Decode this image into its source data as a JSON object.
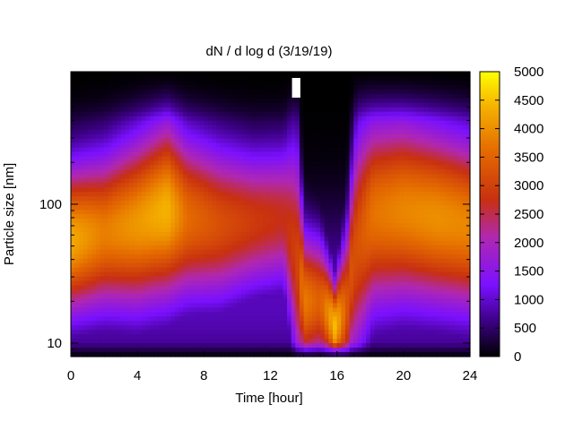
{
  "chart_data": {
    "type": "heatmap",
    "title": "dN / d log d (3/19/19)",
    "xlabel": "Time [hour]",
    "ylabel": "Particle size [nm]",
    "xlim": [
      0,
      24
    ],
    "ylim": [
      8,
      900
    ],
    "y_scale": "log",
    "x_ticks": [
      0,
      4,
      8,
      12,
      16,
      20,
      24
    ],
    "y_ticks": [
      10,
      100
    ],
    "colorbar": {
      "min": 0,
      "max": 5000,
      "ticks": [
        0,
        500,
        1000,
        1500,
        2000,
        2500,
        3000,
        3500,
        4000,
        4500,
        5000
      ],
      "palette": "black-purple-red-orange-yellow"
    },
    "grid": false,
    "missing_data_spans": [
      [
        13.3,
        13.8
      ]
    ],
    "structure": {
      "times": [
        0,
        2,
        4,
        5.8,
        7,
        9,
        11,
        12.8,
        13.6,
        14,
        15,
        15.9,
        16.6,
        17.2,
        18.2,
        20,
        22,
        24
      ],
      "mode_diameter_nm": [
        55,
        62,
        72,
        90,
        80,
        72,
        75,
        80,
        40,
        20,
        20,
        13,
        18,
        50,
        85,
        90,
        80,
        70
      ],
      "peak_concentration": [
        4300,
        3800,
        4100,
        4400,
        3600,
        3200,
        2900,
        2700,
        3000,
        3800,
        3400,
        4500,
        3300,
        3200,
        3700,
        3900,
        4000,
        3900
      ],
      "mode_width_decades": [
        0.38,
        0.4,
        0.44,
        0.46,
        0.42,
        0.4,
        0.36,
        0.36,
        0.6,
        0.35,
        0.32,
        0.22,
        0.4,
        0.6,
        0.5,
        0.48,
        0.46,
        0.45
      ]
    }
  }
}
